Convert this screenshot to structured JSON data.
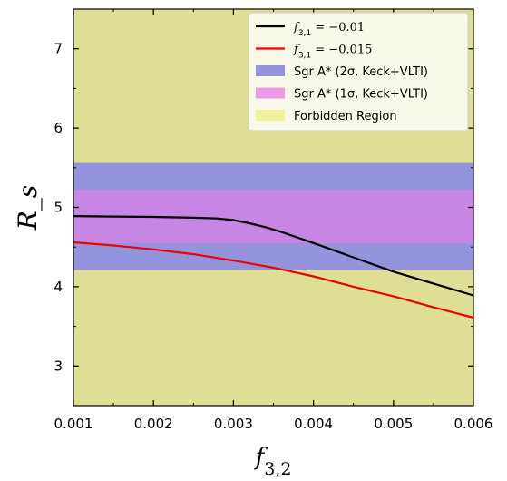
{
  "chart_data": {
    "type": "line",
    "xlabel": "f_{3,2}",
    "ylabel": "R_s",
    "xlim": [
      0.001,
      0.006
    ],
    "ylim": [
      2.5,
      7.5
    ],
    "xticks": [
      "0.001",
      "0.002",
      "0.003",
      "0.004",
      "0.005",
      "0.006"
    ],
    "yticks": [
      "3",
      "4",
      "5",
      "6",
      "7"
    ],
    "grid": false,
    "legend_position": "top-right",
    "forbidden_region": {
      "name": "Forbidden Region",
      "color": "#dede94"
    },
    "bands": [
      {
        "name": "Sgr A* (2σ, Keck+VLTI)",
        "y_low": 4.21,
        "y_high": 5.56,
        "color": "#9494dd"
      },
      {
        "name": "Sgr A* (1σ, Keck+VLTI)",
        "y_low": 4.55,
        "y_high": 5.22,
        "color": "#c886e4"
      }
    ],
    "series": [
      {
        "name": "f_{3,1} = −0.01",
        "color": "#000000",
        "x": [
          0.001,
          0.0015,
          0.002,
          0.0025,
          0.0028,
          0.003,
          0.0032,
          0.0034,
          0.0036,
          0.0038,
          0.004,
          0.0045,
          0.005,
          0.0055,
          0.006
        ],
        "y": [
          4.89,
          4.885,
          4.88,
          4.87,
          4.86,
          4.84,
          4.8,
          4.75,
          4.69,
          4.62,
          4.55,
          4.37,
          4.19,
          4.04,
          3.89
        ]
      },
      {
        "name": "f_{3,1} = −0.015",
        "color": "#ee0000",
        "x": [
          0.001,
          0.0015,
          0.002,
          0.0025,
          0.003,
          0.0035,
          0.004,
          0.0045,
          0.005,
          0.0055,
          0.006
        ],
        "y": [
          4.56,
          4.52,
          4.47,
          4.41,
          4.33,
          4.24,
          4.13,
          4.0,
          3.88,
          3.74,
          3.61
        ]
      }
    ]
  }
}
